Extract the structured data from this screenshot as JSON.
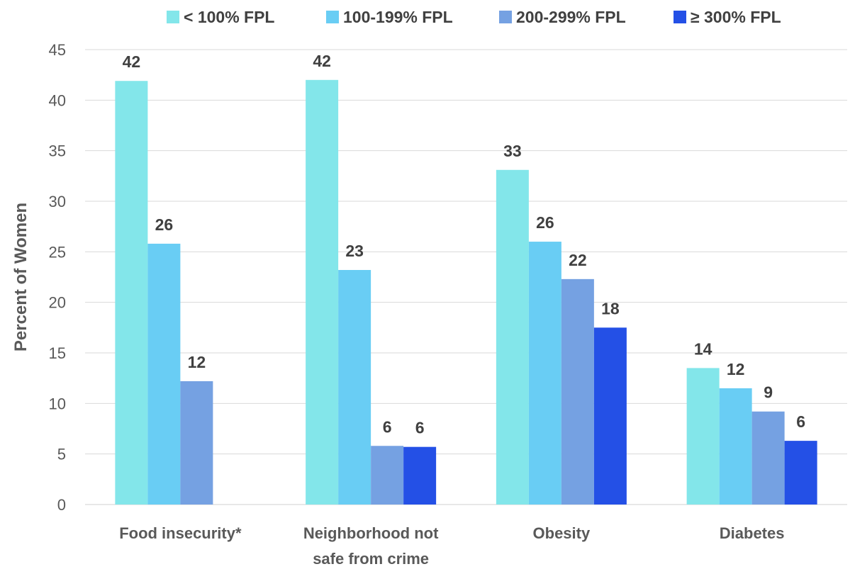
{
  "chart_data": {
    "type": "bar",
    "title": "",
    "xlabel": "",
    "ylabel": "Percent of Women",
    "ylim": [
      0,
      45
    ],
    "yticks": [
      0,
      5,
      10,
      15,
      20,
      25,
      30,
      35,
      40,
      45
    ],
    "grid": true,
    "legend_position": "top",
    "categories": [
      [
        "Food insecurity*"
      ],
      [
        "Neighborhood not",
        "safe from crime"
      ],
      [
        "Obesity"
      ],
      [
        "Diabetes"
      ]
    ],
    "series": [
      {
        "name": "< 100% FPL",
        "color": "#83e6ea",
        "values": [
          41.9,
          42.0,
          33.1,
          13.5
        ],
        "labels": [
          "42",
          "42",
          "33",
          "14"
        ]
      },
      {
        "name": "100-199% FPL",
        "color": "#69cdf4",
        "values": [
          25.8,
          23.2,
          26.0,
          11.5
        ],
        "labels": [
          "26",
          "23",
          "26",
          "12"
        ]
      },
      {
        "name": "200-299% FPL",
        "color": "#75a1e2",
        "values": [
          12.2,
          5.8,
          22.3,
          9.2
        ],
        "labels": [
          "12",
          "6",
          "22",
          "9"
        ]
      },
      {
        "name": "≥ 300% FPL",
        "color": "#2450e6",
        "values": [
          null,
          5.7,
          17.5,
          6.3
        ],
        "labels": [
          "",
          "6",
          "18",
          "6"
        ]
      }
    ]
  }
}
